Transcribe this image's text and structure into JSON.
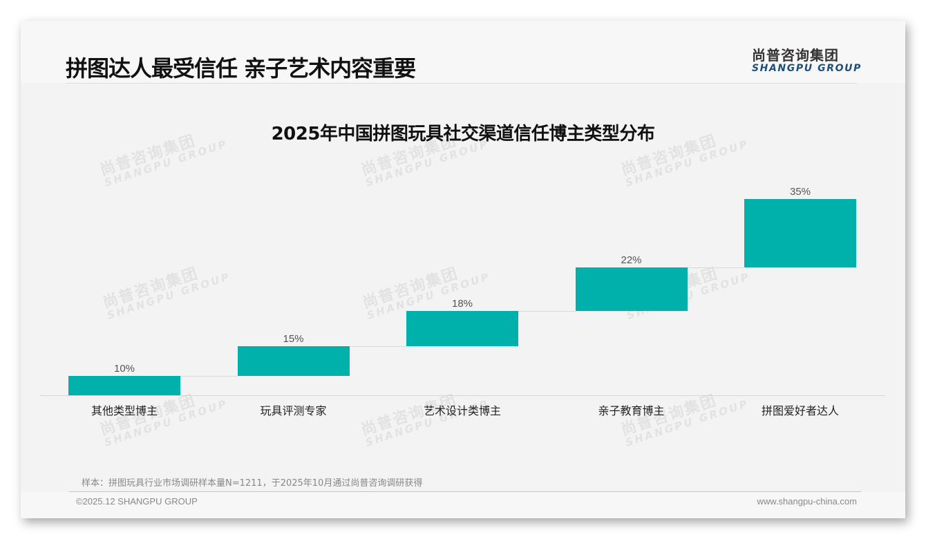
{
  "header": {
    "title": "拼图达人最受信任 亲子艺术内容重要",
    "logo_cn": "尚普咨询集团",
    "logo_en": "SHANGPU GROUP"
  },
  "watermark": {
    "cn": "尚普咨询集团",
    "en": "SHANGPU GROUP"
  },
  "chart_data": {
    "type": "bar",
    "subtype": "waterfall",
    "title": "2025年中国拼图玩具社交渠道信任博主类型分布",
    "categories": [
      "其他类型博主",
      "玩具评测专家",
      "艺术设计类博主",
      "亲子教育博主",
      "拼图爱好者达人"
    ],
    "values": [
      10,
      15,
      18,
      22,
      35
    ],
    "value_labels": [
      "10%",
      "15%",
      "18%",
      "22%",
      "35%"
    ],
    "unit": "%",
    "xlabel": "",
    "ylabel": "",
    "ylim": [
      0,
      100
    ],
    "grid": false,
    "legend": null,
    "bar_color": "#00b0aa"
  },
  "footer": {
    "note": "样本：拼图玩具行业市场调研样本量N=1211，于2025年10月通过尚普咨询调研获得",
    "copyright": "©2025.12 SHANGPU GROUP",
    "website": "www.shangpu-china.com"
  }
}
